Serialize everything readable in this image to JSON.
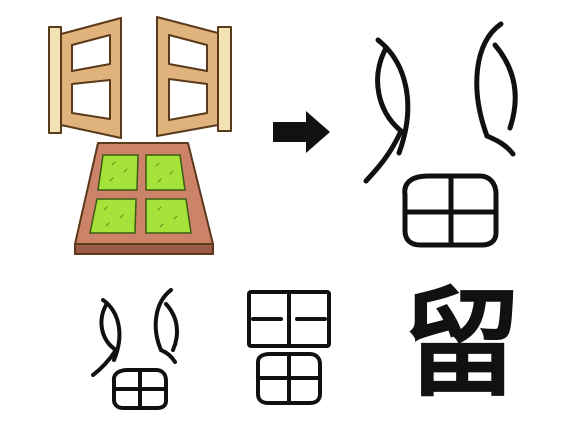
{
  "illustration": {
    "left_window_icon": "open-window-shutter",
    "right_window_icon": "open-window-shutter",
    "field_icon": "rice-field-plot",
    "arrow_icon": "right-arrow"
  },
  "evolution": {
    "modern_character": "留"
  },
  "colors": {
    "wood": "#e0b27c",
    "wood_dark": "#b97b3d",
    "field_soil": "#cd836a",
    "field_soil_dark": "#9c5a47",
    "field_grass": "#a6e33a",
    "ink": "#111111"
  }
}
